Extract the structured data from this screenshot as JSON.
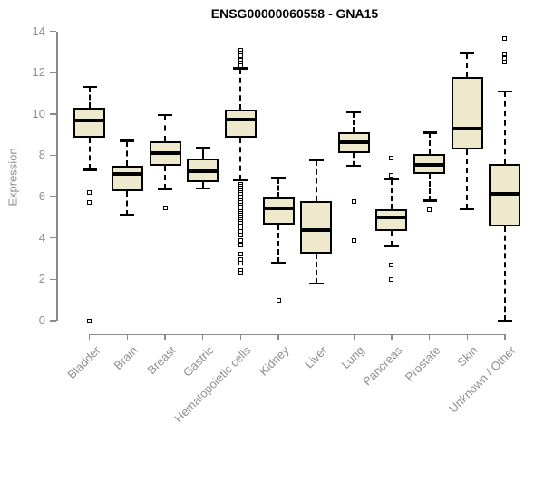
{
  "header": {
    "title": "ENSG00000060558 - GNA15"
  },
  "chart_data": {
    "type": "boxplot",
    "title": "ENSG00000060558 - GNA15",
    "xlabel": "",
    "ylabel": "Expression",
    "ylim": [
      0,
      14
    ],
    "yticks": [
      0,
      2,
      4,
      6,
      8,
      10,
      12,
      14
    ],
    "grid": false,
    "legend": "none",
    "colors": {
      "box_fill": "#EEE8CD",
      "box_border": "#000000",
      "median": "#000000",
      "axis": "#8b8b8b",
      "tick_label": "#8f8f8f",
      "title": "#000000",
      "background": "#ffffff"
    },
    "categories": [
      "Bladder",
      "Brain",
      "Breast",
      "Gastric",
      "Hematopoietic cells",
      "Kidney",
      "Liver",
      "Lung",
      "Pancreas",
      "Prostate",
      "Skin",
      "Unknown / Other"
    ],
    "boxes": [
      {
        "category": "Bladder",
        "low": 7.3,
        "q1": 8.85,
        "median": 9.7,
        "q3": 10.3,
        "high": 11.3,
        "outliers": [
          6.2,
          5.7,
          0.0
        ]
      },
      {
        "category": "Brain",
        "low": 5.1,
        "q1": 6.25,
        "median": 7.1,
        "q3": 7.5,
        "high": 8.7,
        "outliers": []
      },
      {
        "category": "Breast",
        "low": 6.35,
        "q1": 7.5,
        "median": 8.1,
        "q3": 8.7,
        "high": 9.95,
        "outliers": [
          5.45
        ]
      },
      {
        "category": "Gastric",
        "low": 6.4,
        "q1": 6.7,
        "median": 7.25,
        "q3": 7.85,
        "high": 8.35,
        "outliers": []
      },
      {
        "category": "Hematopoietic cells",
        "low": 6.8,
        "q1": 8.85,
        "median": 9.75,
        "q3": 10.2,
        "high": 12.2,
        "outliers": [
          13.1,
          12.95,
          12.8,
          12.6,
          12.45,
          12.35,
          6.6,
          6.5,
          6.4,
          6.3,
          6.2,
          6.1,
          6.0,
          5.9,
          5.8,
          5.7,
          5.6,
          5.5,
          5.4,
          5.3,
          5.2,
          5.1,
          5.0,
          4.9,
          4.8,
          4.7,
          4.6,
          4.5,
          4.3,
          4.15,
          3.9,
          3.65,
          3.2,
          2.95,
          2.8,
          2.45,
          2.3
        ]
      },
      {
        "category": "Kidney",
        "low": 2.8,
        "q1": 4.65,
        "median": 5.45,
        "q3": 5.95,
        "high": 6.9,
        "outliers": [
          1.0
        ]
      },
      {
        "category": "Liver",
        "low": 1.8,
        "q1": 3.25,
        "median": 4.4,
        "q3": 5.8,
        "high": 7.75,
        "outliers": []
      },
      {
        "category": "Lung",
        "low": 7.5,
        "q1": 8.1,
        "median": 8.65,
        "q3": 9.1,
        "high": 10.1,
        "outliers": [
          5.75,
          3.9
        ]
      },
      {
        "category": "Pancreas",
        "low": 3.6,
        "q1": 4.35,
        "median": 5.0,
        "q3": 5.4,
        "high": 6.85,
        "outliers": [
          7.85,
          7.05,
          2.7,
          2.0
        ]
      },
      {
        "category": "Prostate",
        "low": 5.8,
        "q1": 7.1,
        "median": 7.55,
        "q3": 8.05,
        "high": 9.1,
        "outliers": [
          5.35
        ]
      },
      {
        "category": "Skin",
        "low": 5.4,
        "q1": 8.3,
        "median": 9.3,
        "q3": 11.8,
        "high": 12.95,
        "outliers": []
      },
      {
        "category": "Unknown / Other",
        "low": 0.0,
        "q1": 4.55,
        "median": 6.15,
        "q3": 7.6,
        "high": 11.1,
        "outliers": [
          13.65,
          12.9,
          12.7,
          12.5
        ]
      }
    ]
  }
}
